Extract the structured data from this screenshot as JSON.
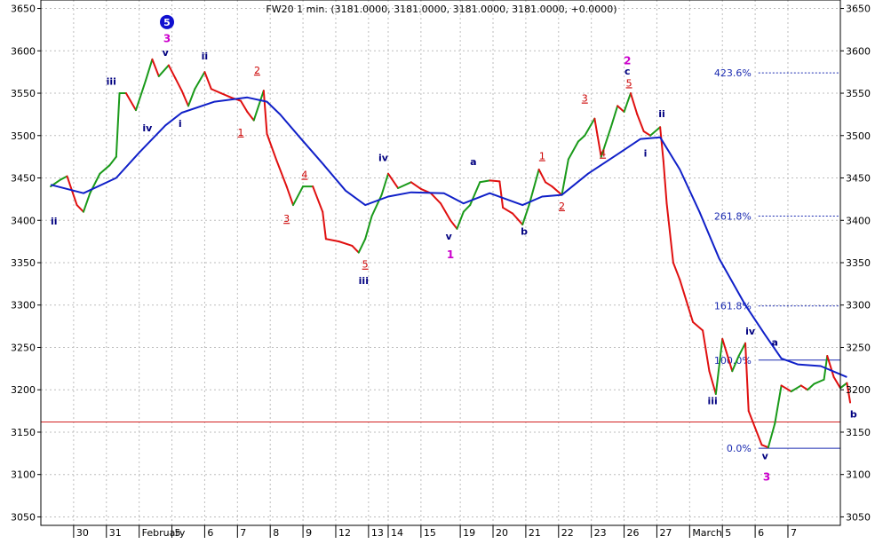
{
  "chart_data": {
    "type": "line",
    "title": "FW20 1 min. (3181.0000, 3181.0000, 3181.0000, 3181.0000, +0.0000)",
    "ylim": [
      3040,
      3660
    ],
    "y_ticks": [
      3050,
      3100,
      3150,
      3200,
      3250,
      3300,
      3350,
      3400,
      3450,
      3500,
      3550,
      3600,
      3650
    ],
    "x_ticks": [
      {
        "label": "30",
        "x": 0.7
      },
      {
        "label": "31",
        "x": 1.7
      },
      {
        "label": "February",
        "x": 2.7
      },
      {
        "label": "5",
        "x": 3.7
      },
      {
        "label": "6",
        "x": 4.7
      },
      {
        "label": "7",
        "x": 5.7
      },
      {
        "label": "8",
        "x": 6.7
      },
      {
        "label": "9",
        "x": 7.7
      },
      {
        "label": "12",
        "x": 8.7
      },
      {
        "label": "13",
        "x": 9.7
      },
      {
        "label": "14",
        "x": 10.3
      },
      {
        "label": "15",
        "x": 11.3
      },
      {
        "label": "19",
        "x": 12.5
      },
      {
        "label": "20",
        "x": 13.5
      },
      {
        "label": "21",
        "x": 14.5
      },
      {
        "label": "22",
        "x": 15.5
      },
      {
        "label": "23",
        "x": 16.5
      },
      {
        "label": "26",
        "x": 17.5
      },
      {
        "label": "27",
        "x": 18.5
      },
      {
        "label": "March",
        "x": 19.5
      },
      {
        "label": "5",
        "x": 20.5
      },
      {
        "label": "6",
        "x": 21.5
      },
      {
        "label": "7",
        "x": 22.5
      }
    ],
    "xlim": [
      -0.3,
      24.1
    ],
    "grid": true,
    "series": [
      {
        "role": "price",
        "points": [
          [
            0,
            3440
          ],
          [
            0.3,
            3448
          ],
          [
            0.5,
            3452
          ],
          [
            0.8,
            3418
          ],
          [
            1.0,
            3410
          ],
          [
            1.2,
            3432
          ],
          [
            1.5,
            3455
          ],
          [
            1.8,
            3465
          ],
          [
            2.0,
            3475
          ],
          [
            2.1,
            3550
          ],
          [
            2.3,
            3550
          ],
          [
            2.6,
            3530
          ],
          [
            2.9,
            3565
          ],
          [
            3.1,
            3590
          ],
          [
            3.3,
            3570
          ],
          [
            3.6,
            3583
          ],
          [
            3.8,
            3568
          ],
          [
            4.0,
            3553
          ],
          [
            4.2,
            3535
          ],
          [
            4.4,
            3555
          ],
          [
            4.7,
            3575
          ],
          [
            4.9,
            3555
          ],
          [
            5.2,
            3550
          ],
          [
            5.5,
            3545
          ],
          [
            5.8,
            3541
          ],
          [
            6.0,
            3528
          ],
          [
            6.2,
            3518
          ],
          [
            6.5,
            3553
          ],
          [
            6.6,
            3502
          ],
          [
            6.9,
            3470
          ],
          [
            7.2,
            3440
          ],
          [
            7.4,
            3418
          ],
          [
            7.7,
            3440
          ],
          [
            8.0,
            3440
          ],
          [
            8.3,
            3410
          ],
          [
            8.4,
            3378
          ],
          [
            8.8,
            3375
          ],
          [
            9.2,
            3370
          ],
          [
            9.4,
            3362
          ],
          [
            9.6,
            3378
          ],
          [
            9.8,
            3405
          ],
          [
            10.1,
            3430
          ],
          [
            10.3,
            3455
          ],
          [
            10.6,
            3438
          ],
          [
            11.0,
            3445
          ],
          [
            11.3,
            3437
          ],
          [
            11.6,
            3432
          ],
          [
            11.9,
            3420
          ],
          [
            12.2,
            3400
          ],
          [
            12.4,
            3390
          ],
          [
            12.6,
            3410
          ],
          [
            12.8,
            3418
          ],
          [
            13.1,
            3445
          ],
          [
            13.4,
            3447
          ],
          [
            13.7,
            3446
          ],
          [
            13.8,
            3415
          ],
          [
            14.1,
            3408
          ],
          [
            14.4,
            3395
          ],
          [
            14.6,
            3418
          ],
          [
            14.9,
            3460
          ],
          [
            15.1,
            3445
          ],
          [
            15.3,
            3440
          ],
          [
            15.6,
            3430
          ],
          [
            15.8,
            3472
          ],
          [
            16.1,
            3493
          ],
          [
            16.3,
            3500
          ],
          [
            16.6,
            3520
          ],
          [
            16.8,
            3475
          ],
          [
            17.1,
            3510
          ],
          [
            17.3,
            3535
          ],
          [
            17.5,
            3528
          ],
          [
            17.7,
            3550
          ],
          [
            17.9,
            3525
          ],
          [
            18.1,
            3505
          ],
          [
            18.3,
            3500
          ],
          [
            18.6,
            3510
          ],
          [
            18.7,
            3470
          ],
          [
            18.8,
            3420
          ],
          [
            19.0,
            3350
          ],
          [
            19.2,
            3330
          ],
          [
            19.4,
            3305
          ],
          [
            19.6,
            3280
          ],
          [
            19.9,
            3270
          ],
          [
            20.1,
            3222
          ],
          [
            20.3,
            3195
          ],
          [
            20.5,
            3260
          ],
          [
            20.8,
            3222
          ],
          [
            21.0,
            3240
          ],
          [
            21.2,
            3255
          ],
          [
            21.3,
            3175
          ],
          [
            21.5,
            3155
          ],
          [
            21.7,
            3135
          ],
          [
            21.9,
            3132
          ],
          [
            22.1,
            3160
          ],
          [
            22.3,
            3205
          ],
          [
            22.6,
            3198
          ],
          [
            22.9,
            3205
          ],
          [
            23.1,
            3200
          ],
          [
            23.3,
            3207
          ],
          [
            23.6,
            3212
          ],
          [
            23.7,
            3240
          ],
          [
            23.9,
            3215
          ],
          [
            24.1,
            3202
          ],
          [
            24.3,
            3208
          ],
          [
            24.4,
            3185
          ]
        ]
      },
      {
        "role": "moving-average",
        "points": [
          [
            0,
            3442
          ],
          [
            1.0,
            3432
          ],
          [
            2.0,
            3450
          ],
          [
            2.7,
            3480
          ],
          [
            3.5,
            3512
          ],
          [
            4.0,
            3527
          ],
          [
            5.0,
            3540
          ],
          [
            6.0,
            3545
          ],
          [
            6.6,
            3540
          ],
          [
            7.0,
            3525
          ],
          [
            7.6,
            3498
          ],
          [
            8.3,
            3467
          ],
          [
            9.0,
            3435
          ],
          [
            9.6,
            3418
          ],
          [
            10.3,
            3428
          ],
          [
            11.0,
            3433
          ],
          [
            12.0,
            3432
          ],
          [
            12.6,
            3420
          ],
          [
            13.4,
            3432
          ],
          [
            14.4,
            3418
          ],
          [
            15.0,
            3428
          ],
          [
            15.6,
            3430
          ],
          [
            16.4,
            3455
          ],
          [
            17.3,
            3478
          ],
          [
            18.0,
            3496
          ],
          [
            18.6,
            3498
          ],
          [
            19.2,
            3460
          ],
          [
            19.8,
            3410
          ],
          [
            20.4,
            3355
          ],
          [
            21.2,
            3300
          ],
          [
            21.8,
            3265
          ],
          [
            22.3,
            3237
          ],
          [
            22.8,
            3230
          ],
          [
            23.5,
            3228
          ],
          [
            24.3,
            3215
          ]
        ]
      }
    ],
    "wave_labels": [
      {
        "text": "iii",
        "x": 1.85,
        "y": 3560,
        "color": "#000080",
        "size": 11
      },
      {
        "text": "ii",
        "x": 0.1,
        "y": 3395,
        "color": "#000080",
        "size": 11
      },
      {
        "text": "iv",
        "x": 2.95,
        "y": 3505,
        "color": "#000080",
        "size": 11
      },
      {
        "text": "v",
        "x": 3.5,
        "y": 3594,
        "color": "#000080",
        "size": 11
      },
      {
        "text": "3",
        "x": 3.55,
        "y": 3610,
        "color": "#cc00cc",
        "size": 12
      },
      {
        "text": "i",
        "x": 3.95,
        "y": 3510,
        "color": "#000080",
        "size": 11
      },
      {
        "text": "ii",
        "x": 4.7,
        "y": 3590,
        "color": "#000080",
        "size": 11
      },
      {
        "text": "2",
        "x": 6.3,
        "y": 3573,
        "color": "#cc0000",
        "size": 11,
        "underline": true
      },
      {
        "text": "1",
        "x": 5.8,
        "y": 3500,
        "color": "#cc0000",
        "size": 11,
        "underline": true
      },
      {
        "text": "3",
        "x": 7.2,
        "y": 3398,
        "color": "#cc0000",
        "size": 11,
        "underline": true
      },
      {
        "text": "4",
        "x": 7.75,
        "y": 3450,
        "color": "#cc0000",
        "size": 11,
        "underline": true
      },
      {
        "text": "5",
        "x": 9.6,
        "y": 3344,
        "color": "#cc0000",
        "size": 11,
        "underline": true
      },
      {
        "text": "iii",
        "x": 9.55,
        "y": 3325,
        "color": "#000080",
        "size": 11
      },
      {
        "text": "iv",
        "x": 10.15,
        "y": 3470,
        "color": "#000080",
        "size": 11
      },
      {
        "text": "v",
        "x": 12.15,
        "y": 3377,
        "color": "#000080",
        "size": 11
      },
      {
        "text": "1",
        "x": 12.2,
        "y": 3355,
        "color": "#cc00cc",
        "size": 12
      },
      {
        "text": "a",
        "x": 12.9,
        "y": 3465,
        "color": "#000080",
        "size": 11
      },
      {
        "text": "b",
        "x": 14.45,
        "y": 3383,
        "color": "#000080",
        "size": 11
      },
      {
        "text": "1",
        "x": 15.0,
        "y": 3472,
        "color": "#cc0000",
        "size": 11,
        "underline": true
      },
      {
        "text": "2",
        "x": 15.6,
        "y": 3413,
        "color": "#cc0000",
        "size": 11,
        "underline": true
      },
      {
        "text": "3",
        "x": 16.3,
        "y": 3540,
        "color": "#cc0000",
        "size": 11,
        "underline": true
      },
      {
        "text": "4",
        "x": 16.85,
        "y": 3475,
        "color": "#cc0000",
        "size": 11,
        "underline": true
      },
      {
        "text": "2",
        "x": 17.6,
        "y": 3584,
        "color": "#cc00cc",
        "size": 12
      },
      {
        "text": "c",
        "x": 17.6,
        "y": 3572,
        "color": "#000080",
        "size": 11
      },
      {
        "text": "5",
        "x": 17.65,
        "y": 3558,
        "color": "#cc0000",
        "size": 11,
        "underline": true
      },
      {
        "text": "ii",
        "x": 18.65,
        "y": 3522,
        "color": "#000080",
        "size": 11
      },
      {
        "text": "i",
        "x": 18.15,
        "y": 3475,
        "color": "#000080",
        "size": 11
      },
      {
        "text": "iv",
        "x": 21.35,
        "y": 3265,
        "color": "#000080",
        "size": 11
      },
      {
        "text": "iii",
        "x": 20.2,
        "y": 3183,
        "color": "#000080",
        "size": 11
      },
      {
        "text": "a",
        "x": 22.1,
        "y": 3252,
        "color": "#000080",
        "size": 11
      },
      {
        "text": "v",
        "x": 21.8,
        "y": 3118,
        "color": "#000080",
        "size": 11
      },
      {
        "text": "3",
        "x": 21.85,
        "y": 3093,
        "color": "#cc00cc",
        "size": 12
      },
      {
        "text": "b",
        "x": 24.5,
        "y": 3167,
        "color": "#000080",
        "size": 11
      }
    ],
    "wave_circle": {
      "text": "5",
      "x": 3.55,
      "y": 3634
    },
    "fib_levels": [
      {
        "label": "423.6%",
        "y": 3574,
        "x_start": 21.6,
        "dotted": true
      },
      {
        "label": "261.8%",
        "y": 3405,
        "x_start": 21.6,
        "dotted": true
      },
      {
        "label": "161.8%",
        "y": 3299,
        "x_start": 21.6,
        "dotted": true
      },
      {
        "label": "100.0%",
        "y": 3235,
        "x_start": 21.6,
        "dotted": false
      },
      {
        "label": "0.0%",
        "y": 3131,
        "x_start": 21.6,
        "dotted": false
      }
    ],
    "horizontal_line": {
      "y": 3162,
      "color": "#d22020"
    },
    "colors": {
      "up": "#1a9a1a",
      "down": "#e01010",
      "moving_average": "#1020c8",
      "fib": "#1a2ab0",
      "grid": "#bdbdbd",
      "axis_text": "#000000"
    }
  }
}
